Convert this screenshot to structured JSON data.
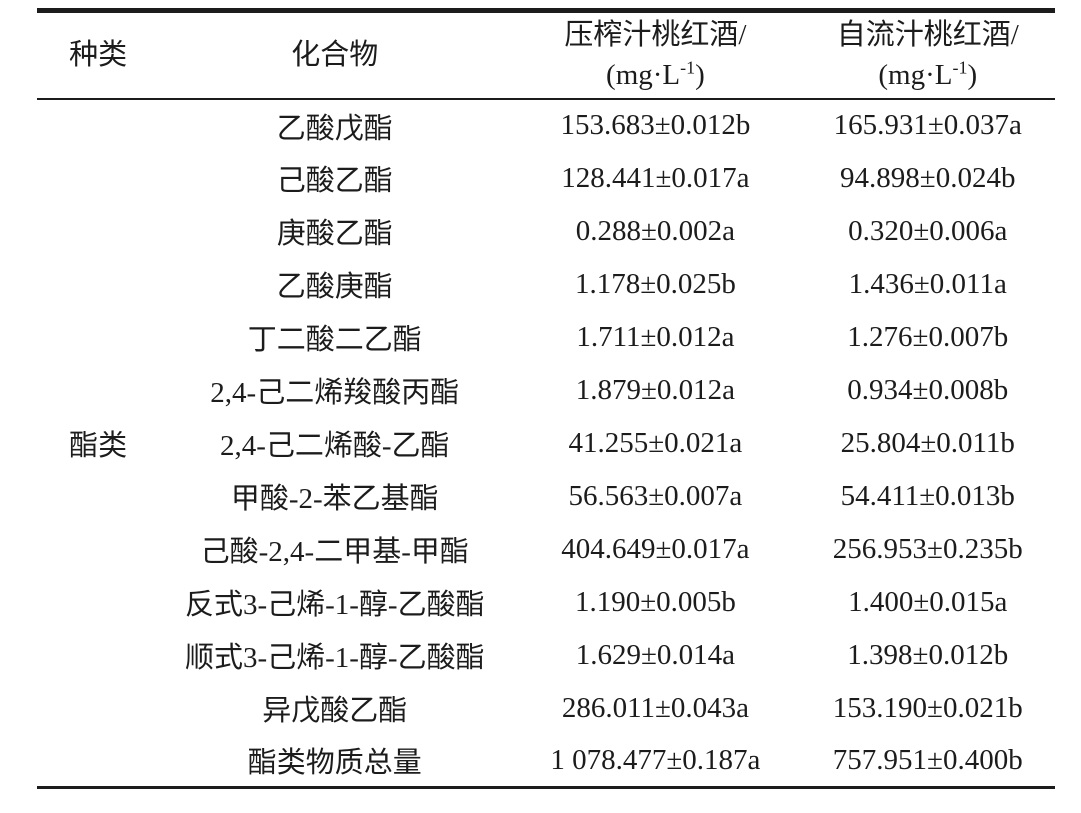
{
  "table": {
    "header": {
      "col1": "种类",
      "col2": "化合物",
      "col3_line1": "压榨汁桃红酒/",
      "col4_line1": "自流汁桃红酒/",
      "unit_open": "(mg·L",
      "unit_sup": "-1",
      "unit_close": ")"
    },
    "category": "酯类",
    "rows": [
      {
        "compound": "乙酸戊酯",
        "pressed": "153.683±0.012b",
        "free_run": "165.931±0.037a"
      },
      {
        "compound": "己酸乙酯",
        "pressed": "128.441±0.017a",
        "free_run": "94.898±0.024b"
      },
      {
        "compound": "庚酸乙酯",
        "pressed": "0.288±0.002a",
        "free_run": "0.320±0.006a"
      },
      {
        "compound": "乙酸庚酯",
        "pressed": "1.178±0.025b",
        "free_run": "1.436±0.011a"
      },
      {
        "compound": "丁二酸二乙酯",
        "pressed": "1.711±0.012a",
        "free_run": "1.276±0.007b"
      },
      {
        "compound": "2,4-己二烯羧酸丙酯",
        "pressed": "1.879±0.012a",
        "free_run": "0.934±0.008b"
      },
      {
        "compound": "2,4-己二烯酸-乙酯",
        "pressed": "41.255±0.021a",
        "free_run": "25.804±0.011b"
      },
      {
        "compound": "甲酸-2-苯乙基酯",
        "pressed": "56.563±0.007a",
        "free_run": "54.411±0.013b"
      },
      {
        "compound": "己酸-2,4-二甲基-甲酯",
        "pressed": "404.649±0.017a",
        "free_run": "256.953±0.235b"
      },
      {
        "compound": "反式3-己烯-1-醇-乙酸酯",
        "pressed": "1.190±0.005b",
        "free_run": "1.400±0.015a"
      },
      {
        "compound": "顺式3-己烯-1-醇-乙酸酯",
        "pressed": "1.629±0.014a",
        "free_run": "1.398±0.012b"
      },
      {
        "compound": "异戊酸乙酯",
        "pressed": "286.011±0.043a",
        "free_run": "153.190±0.021b"
      },
      {
        "compound": "酯类物质总量",
        "pressed": "1 078.477±0.187a",
        "free_run": "757.951±0.400b"
      }
    ]
  }
}
